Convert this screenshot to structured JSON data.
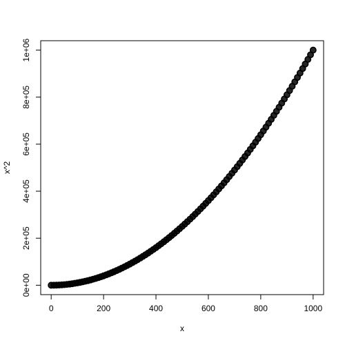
{
  "chart_data": {
    "type": "scatter",
    "xlabel": "x",
    "ylabel": "x^2",
    "color": "#000000",
    "x": [
      0,
      10,
      20,
      30,
      40,
      50,
      60,
      70,
      80,
      90,
      100,
      110,
      120,
      130,
      140,
      150,
      160,
      170,
      180,
      190,
      200,
      210,
      220,
      230,
      240,
      250,
      260,
      270,
      280,
      290,
      300,
      310,
      320,
      330,
      340,
      350,
      360,
      370,
      380,
      390,
      400,
      410,
      420,
      430,
      440,
      450,
      460,
      470,
      480,
      490,
      500,
      510,
      520,
      530,
      540,
      550,
      560,
      570,
      580,
      590,
      600,
      610,
      620,
      630,
      640,
      650,
      660,
      670,
      680,
      690,
      700,
      710,
      720,
      730,
      740,
      750,
      760,
      770,
      780,
      790,
      800,
      810,
      820,
      830,
      840,
      850,
      860,
      870,
      880,
      890,
      900,
      910,
      920,
      930,
      940,
      950,
      960,
      970,
      980,
      990,
      1000
    ],
    "values": [
      0,
      100,
      400,
      900,
      1600,
      2500,
      3600,
      4900,
      6400,
      8100,
      10000,
      12100,
      14400,
      16900,
      19600,
      22500,
      25600,
      28900,
      32400,
      36100,
      40000,
      44100,
      48400,
      52900,
      57600,
      62500,
      67600,
      72900,
      78400,
      84100,
      90000,
      96100,
      102400,
      108900,
      115600,
      122500,
      129600,
      136900,
      144400,
      152100,
      160000,
      168100,
      176400,
      184900,
      193600,
      202500,
      211600,
      220900,
      230400,
      240100,
      250000,
      260100,
      270400,
      280900,
      291600,
      302500,
      313600,
      324900,
      336400,
      348100,
      360000,
      372100,
      384400,
      396900,
      409600,
      422500,
      435600,
      448900,
      462400,
      476100,
      490000,
      504100,
      518400,
      532900,
      547600,
      562500,
      577600,
      592900,
      608400,
      624100,
      640000,
      656100,
      672400,
      688900,
      705600,
      722500,
      739600,
      756900,
      774400,
      792100,
      810000,
      828100,
      846400,
      864900,
      883600,
      902500,
      921600,
      940900,
      960400,
      980100,
      1000000
    ],
    "xlim": [
      -40,
      1040
    ],
    "ylim": [
      -40000,
      1040000
    ],
    "xticks": [
      0,
      200,
      400,
      600,
      800,
      1000
    ],
    "yticks": [
      {
        "value": 0,
        "label": "0e+00"
      },
      {
        "value": 200000,
        "label": "2e+05"
      },
      {
        "value": 400000,
        "label": "4e+05"
      },
      {
        "value": 600000,
        "label": "6e+05"
      },
      {
        "value": 800000,
        "label": "8e+05"
      },
      {
        "value": 1000000,
        "label": "1e+06"
      }
    ]
  }
}
